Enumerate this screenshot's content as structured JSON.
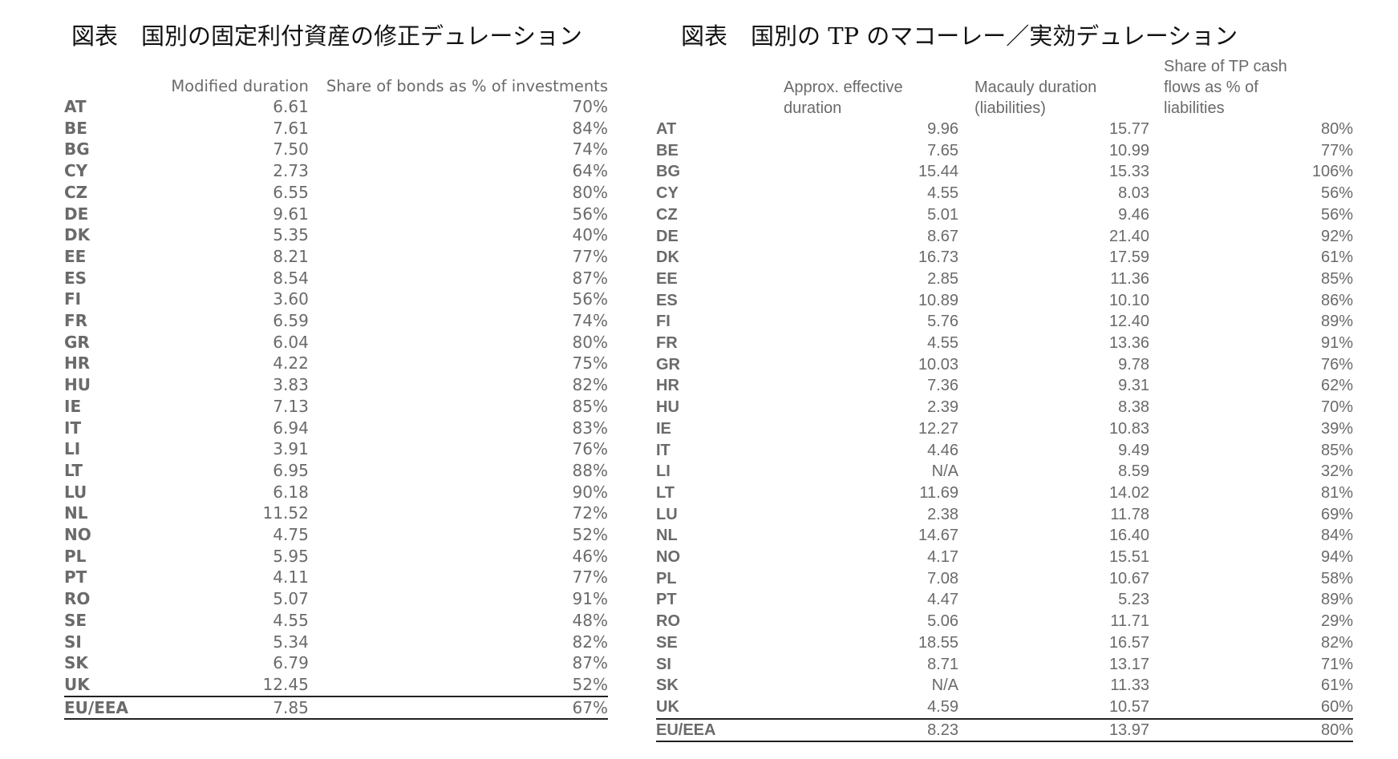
{
  "left": {
    "title": "図表　国別の固定利付資産の修正デュレーション",
    "headers": [
      "",
      "Modified duration",
      "Share of bonds as % of investments"
    ],
    "rows": [
      [
        "AT",
        "6.61",
        "70%"
      ],
      [
        "BE",
        "7.61",
        "84%"
      ],
      [
        "BG",
        "7.50",
        "74%"
      ],
      [
        "CY",
        "2.73",
        "64%"
      ],
      [
        "CZ",
        "6.55",
        "80%"
      ],
      [
        "DE",
        "9.61",
        "56%"
      ],
      [
        "DK",
        "5.35",
        "40%"
      ],
      [
        "EE",
        "8.21",
        "77%"
      ],
      [
        "ES",
        "8.54",
        "87%"
      ],
      [
        "FI",
        "3.60",
        "56%"
      ],
      [
        "FR",
        "6.59",
        "74%"
      ],
      [
        "GR",
        "6.04",
        "80%"
      ],
      [
        "HR",
        "4.22",
        "75%"
      ],
      [
        "HU",
        "3.83",
        "82%"
      ],
      [
        "IE",
        "7.13",
        "85%"
      ],
      [
        "IT",
        "6.94",
        "83%"
      ],
      [
        "LI",
        "3.91",
        "76%"
      ],
      [
        "LT",
        "6.95",
        "88%"
      ],
      [
        "LU",
        "6.18",
        "90%"
      ],
      [
        "NL",
        "11.52",
        "72%"
      ],
      [
        "NO",
        "4.75",
        "52%"
      ],
      [
        "PL",
        "5.95",
        "46%"
      ],
      [
        "PT",
        "4.11",
        "77%"
      ],
      [
        "RO",
        "5.07",
        "91%"
      ],
      [
        "SE",
        "4.55",
        "48%"
      ],
      [
        "SI",
        "5.34",
        "82%"
      ],
      [
        "SK",
        "6.79",
        "87%"
      ],
      [
        "UK",
        "12.45",
        "52%"
      ]
    ],
    "total": [
      "EU/EEA",
      "7.85",
      "67%"
    ]
  },
  "right": {
    "title": "図表　国別の TP のマコーレー／実効デュレーション",
    "headers": [
      "",
      "Approx. effective duration",
      "Macauly duration (liabilities)",
      "Share of TP cash flows as % of liabilities"
    ],
    "rows": [
      [
        "AT",
        "9.96",
        "15.77",
        "80%"
      ],
      [
        "BE",
        "7.65",
        "10.99",
        "77%"
      ],
      [
        "BG",
        "15.44",
        "15.33",
        "106%"
      ],
      [
        "CY",
        "4.55",
        "8.03",
        "56%"
      ],
      [
        "CZ",
        "5.01",
        "9.46",
        "56%"
      ],
      [
        "DE",
        "8.67",
        "21.40",
        "92%"
      ],
      [
        "DK",
        "16.73",
        "17.59",
        "61%"
      ],
      [
        "EE",
        "2.85",
        "11.36",
        "85%"
      ],
      [
        "ES",
        "10.89",
        "10.10",
        "86%"
      ],
      [
        "FI",
        "5.76",
        "12.40",
        "89%"
      ],
      [
        "FR",
        "4.55",
        "13.36",
        "91%"
      ],
      [
        "GR",
        "10.03",
        "9.78",
        "76%"
      ],
      [
        "HR",
        "7.36",
        "9.31",
        "62%"
      ],
      [
        "HU",
        "2.39",
        "8.38",
        "70%"
      ],
      [
        "IE",
        "12.27",
        "10.83",
        "39%"
      ],
      [
        "IT",
        "4.46",
        "9.49",
        "85%"
      ],
      [
        "LI",
        "N/A",
        "8.59",
        "32%"
      ],
      [
        "LT",
        "11.69",
        "14.02",
        "81%"
      ],
      [
        "LU",
        "2.38",
        "11.78",
        "69%"
      ],
      [
        "NL",
        "14.67",
        "16.40",
        "84%"
      ],
      [
        "NO",
        "4.17",
        "15.51",
        "94%"
      ],
      [
        "PL",
        "7.08",
        "10.67",
        "58%"
      ],
      [
        "PT",
        "4.47",
        "5.23",
        "89%"
      ],
      [
        "RO",
        "5.06",
        "11.71",
        "29%"
      ],
      [
        "SE",
        "18.55",
        "16.57",
        "82%"
      ],
      [
        "SI",
        "8.71",
        "13.17",
        "71%"
      ],
      [
        "SK",
        "N/A",
        "11.33",
        "61%"
      ],
      [
        "UK",
        "4.59",
        "10.57",
        "60%"
      ]
    ],
    "total": [
      "EU/EEA",
      "8.23",
      "13.97",
      "80%"
    ]
  }
}
